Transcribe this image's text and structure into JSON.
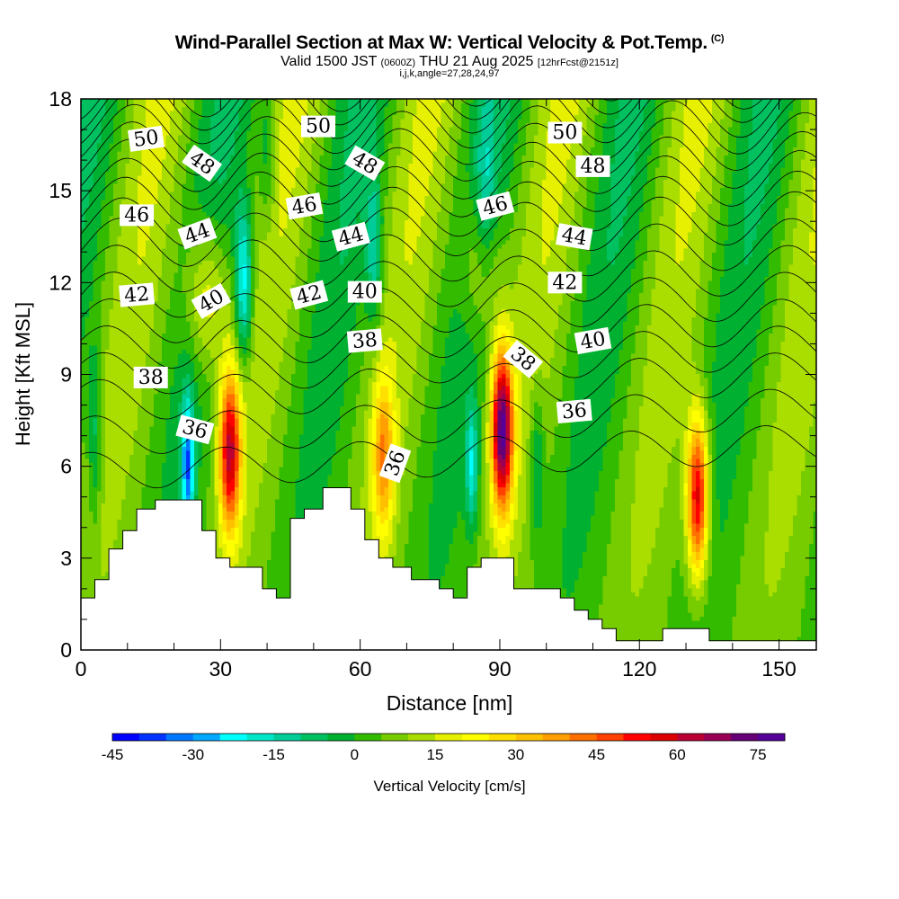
{
  "title": {
    "line1": "Wind-Parallel Section at Max W: Vertical Velocity & Pot.Temp.",
    "copyright": "(C)",
    "valid_prefix": "Valid 1500 JST",
    "valid_z": "(0600Z)",
    "valid_date": "THU 21 Aug 2025",
    "forecast": "[12hrFcst@2151z]",
    "line3": "i,j,k,angle=27,28,24,97"
  },
  "chart_data": {
    "type": "heatmap",
    "xlabel": "Distance [nm]",
    "ylabel": "Height [Kft MSL]",
    "xlim": [
      0,
      158
    ],
    "ylim": [
      0,
      18
    ],
    "x_ticks": [
      0,
      30,
      60,
      90,
      120,
      150
    ],
    "y_ticks": [
      0,
      3,
      6,
      9,
      12,
      15,
      18
    ],
    "colorbar": {
      "label": "Vertical Velocity [cm/s]",
      "min": -45,
      "max": 80,
      "step": 5,
      "tick_values": [
        -45,
        -30,
        -15,
        0,
        15,
        30,
        45,
        60,
        75
      ],
      "colors": [
        "#0000ff",
        "#0033ff",
        "#0077ff",
        "#00a8ff",
        "#00ffff",
        "#00e6c8",
        "#00cc99",
        "#00c060",
        "#00b030",
        "#33bb00",
        "#77cc00",
        "#aadd00",
        "#e6f000",
        "#ffff00",
        "#ffe000",
        "#ffc000",
        "#ffa000",
        "#ff7000",
        "#ff4000",
        "#ff0000",
        "#dd0000",
        "#bb0033",
        "#990055",
        "#660077",
        "#550099"
      ]
    },
    "updraft_cores": [
      {
        "x": 32,
        "z": 6.5,
        "w": 62
      },
      {
        "x": 65,
        "z": 6.3,
        "w": 38
      },
      {
        "x": 90.5,
        "z": 7.2,
        "w": 78
      },
      {
        "x": 132.5,
        "z": 5.0,
        "w": 63
      },
      {
        "x": 27,
        "z": 11.5,
        "w": 28
      },
      {
        "x": 86,
        "z": 12.5,
        "w": 22
      }
    ],
    "terrain_top_kft": [
      [
        0,
        1.7
      ],
      [
        3,
        1.7
      ],
      [
        3,
        2.3
      ],
      [
        6,
        2.3
      ],
      [
        6,
        3.3
      ],
      [
        9,
        3.3
      ],
      [
        9,
        3.9
      ],
      [
        12,
        3.9
      ],
      [
        12,
        4.6
      ],
      [
        16,
        4.6
      ],
      [
        16,
        4.9
      ],
      [
        26,
        4.9
      ],
      [
        26,
        3.9
      ],
      [
        29,
        3.9
      ],
      [
        29,
        3.0
      ],
      [
        32,
        3.0
      ],
      [
        32,
        2.7
      ],
      [
        39,
        2.7
      ],
      [
        39,
        2.0
      ],
      [
        42,
        2.0
      ],
      [
        42,
        1.7
      ],
      [
        45,
        1.7
      ],
      [
        45,
        4.3
      ],
      [
        48,
        4.3
      ],
      [
        48,
        4.6
      ],
      [
        52,
        4.6
      ],
      [
        52,
        5.3
      ],
      [
        58,
        5.3
      ],
      [
        58,
        4.6
      ],
      [
        61,
        4.6
      ],
      [
        61,
        3.6
      ],
      [
        64,
        3.6
      ],
      [
        64,
        3.0
      ],
      [
        67,
        3.0
      ],
      [
        67,
        2.7
      ],
      [
        71,
        2.7
      ],
      [
        71,
        2.3
      ],
      [
        77,
        2.3
      ],
      [
        77,
        2.0
      ],
      [
        80,
        2.0
      ],
      [
        80,
        1.7
      ],
      [
        83,
        1.7
      ],
      [
        83,
        2.7
      ],
      [
        86,
        2.7
      ],
      [
        86,
        3.0
      ],
      [
        93,
        3.0
      ],
      [
        93,
        2.0
      ],
      [
        103,
        2.0
      ],
      [
        103,
        1.7
      ],
      [
        106,
        1.7
      ],
      [
        106,
        1.3
      ],
      [
        109,
        1.3
      ],
      [
        109,
        1.0
      ],
      [
        112,
        1.0
      ],
      [
        112,
        0.7
      ],
      [
        115,
        0.7
      ],
      [
        115,
        0.3
      ],
      [
        125,
        0.3
      ],
      [
        125,
        0.7
      ],
      [
        135,
        0.7
      ],
      [
        135,
        0.3
      ],
      [
        158,
        0.3
      ]
    ],
    "theta_contours": [
      {
        "label": "36",
        "z_kft": 6.3
      },
      {
        "label": "38",
        "z_kft": 8.6
      },
      {
        "label": "40",
        "z_kft": 10.3
      },
      {
        "label": "42",
        "z_kft": 12.0
      },
      {
        "label": "44",
        "z_kft": 13.7
      },
      {
        "label": "46",
        "z_kft": 15.0
      },
      {
        "label": "48",
        "z_kft": 16.2
      },
      {
        "label": "50",
        "z_kft": 17.3
      }
    ],
    "contour_labels": [
      {
        "text": "50",
        "x": 14,
        "z": 16.7,
        "rot": -8
      },
      {
        "text": "50",
        "x": 51,
        "z": 17.1,
        "rot": 0
      },
      {
        "text": "50",
        "x": 104,
        "z": 16.9,
        "rot": 0
      },
      {
        "text": "48",
        "x": 26,
        "z": 15.9,
        "rot": 35
      },
      {
        "text": "48",
        "x": 61,
        "z": 15.9,
        "rot": 30
      },
      {
        "text": "48",
        "x": 110,
        "z": 15.8,
        "rot": 0
      },
      {
        "text": "46",
        "x": 12,
        "z": 14.2,
        "rot": 0
      },
      {
        "text": "46",
        "x": 48,
        "z": 14.5,
        "rot": -10
      },
      {
        "text": "46",
        "x": 89,
        "z": 14.5,
        "rot": -15
      },
      {
        "text": "44",
        "x": 25,
        "z": 13.6,
        "rot": -20
      },
      {
        "text": "44",
        "x": 58,
        "z": 13.5,
        "rot": -15
      },
      {
        "text": "44",
        "x": 106,
        "z": 13.5,
        "rot": 10
      },
      {
        "text": "42",
        "x": 12,
        "z": 11.6,
        "rot": -5
      },
      {
        "text": "42",
        "x": 49,
        "z": 11.6,
        "rot": -15
      },
      {
        "text": "42",
        "x": 104,
        "z": 12.0,
        "rot": 0
      },
      {
        "text": "40",
        "x": 28,
        "z": 11.4,
        "rot": -30
      },
      {
        "text": "40",
        "x": 61,
        "z": 11.7,
        "rot": 0
      },
      {
        "text": "40",
        "x": 110,
        "z": 10.1,
        "rot": -10
      },
      {
        "text": "38",
        "x": 15,
        "z": 8.9,
        "rot": 0
      },
      {
        "text": "38",
        "x": 61,
        "z": 10.1,
        "rot": -5
      },
      {
        "text": "38",
        "x": 95,
        "z": 9.5,
        "rot": 40
      },
      {
        "text": "36",
        "x": 24.5,
        "z": 7.2,
        "rot": 15
      },
      {
        "text": "36",
        "x": 67.5,
        "z": 6.1,
        "rot": -70
      },
      {
        "text": "36",
        "x": 106,
        "z": 7.8,
        "rot": -5
      }
    ]
  }
}
